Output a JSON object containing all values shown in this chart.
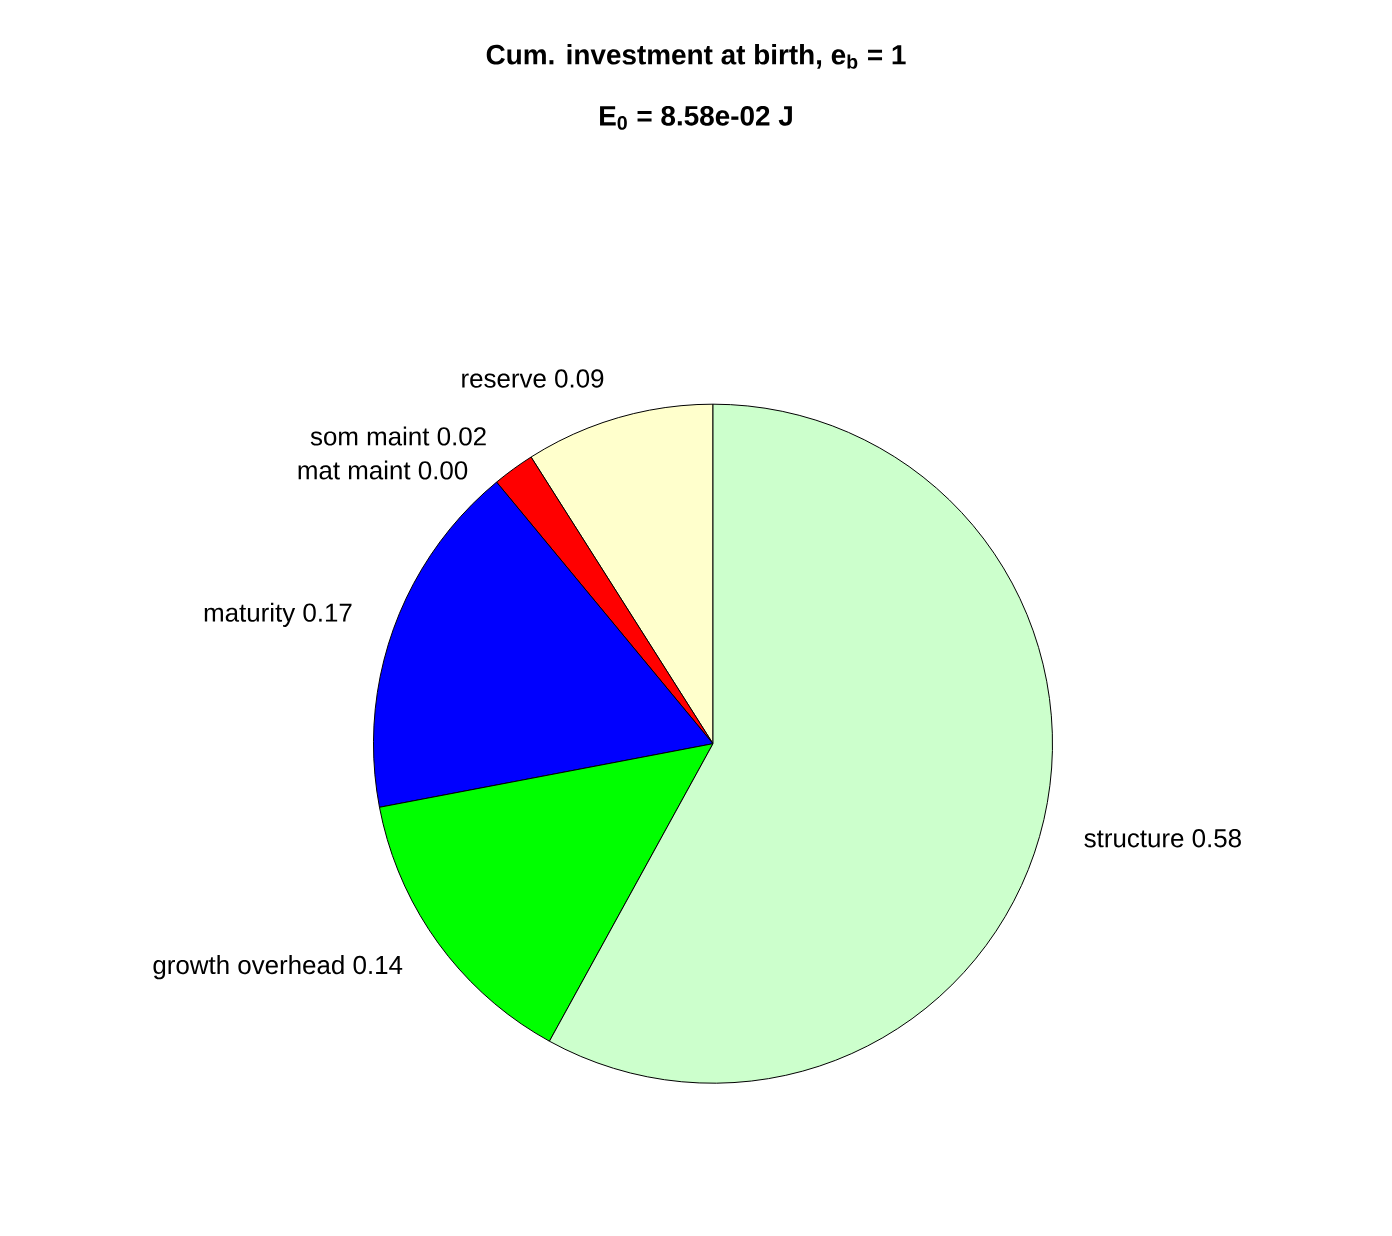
{
  "chart_data": {
    "type": "pie",
    "title": "Cum. investment at birth, e$_{b}$ = 1",
    "subtitle": "E$_{0}$ = 8.58e-02 J",
    "categories": [
      "reserve",
      "som maint",
      "mat maint",
      "maturity",
      "growth overhead",
      "structure"
    ],
    "values": [
      0.09,
      0.02,
      0.0,
      0.17,
      0.14,
      0.58
    ],
    "value_labels": [
      "0.09",
      "0.02",
      "0.00",
      "0.17",
      "0.14",
      "0.58"
    ],
    "colors": [
      "#ffffcc",
      "#ff0000",
      "#000000",
      "#0000ff",
      "#00ff00",
      "#ccffcc"
    ]
  }
}
